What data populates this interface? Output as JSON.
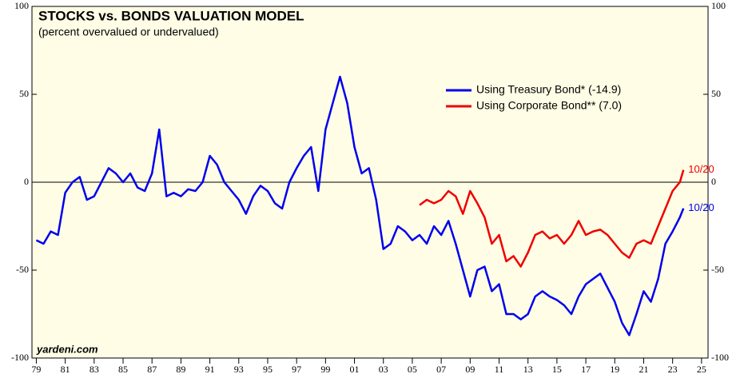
{
  "chart_data": {
    "type": "line",
    "title": "STOCKS vs. BONDS VALUATION MODEL",
    "subtitle": "(percent overvalued or undervalued)",
    "source": "yardeni.com",
    "legend": "upper right",
    "reference_line": 0,
    "x": [
      1979.0,
      1979.5,
      1980.0,
      1980.5,
      1981.0,
      1981.5,
      1982.0,
      1982.5,
      1983.0,
      1983.5,
      1984.0,
      1984.5,
      1985.0,
      1985.5,
      1986.0,
      1986.5,
      1987.0,
      1987.5,
      1988.0,
      1988.5,
      1989.0,
      1989.5,
      1990.0,
      1990.5,
      1991.0,
      1991.5,
      1992.0,
      1992.5,
      1993.0,
      1993.5,
      1994.0,
      1994.5,
      1995.0,
      1995.5,
      1996.0,
      1996.5,
      1997.0,
      1997.5,
      1998.0,
      1998.5,
      1999.0,
      1999.5,
      2000.0,
      2000.5,
      2001.0,
      2001.5,
      2002.0,
      2002.5,
      2003.0,
      2003.5,
      2004.0,
      2004.5,
      2005.0,
      2005.5,
      2006.0,
      2006.5,
      2007.0,
      2007.5,
      2008.0,
      2008.5,
      2009.0,
      2009.5,
      2010.0,
      2010.5,
      2011.0,
      2011.5,
      2012.0,
      2012.5,
      2013.0,
      2013.5,
      2014.0,
      2014.5,
      2015.0,
      2015.5,
      2016.0,
      2016.5,
      2017.0,
      2017.5,
      2018.0,
      2018.5,
      2019.0,
      2019.5,
      2020.0,
      2020.5,
      2021.0,
      2021.5,
      2022.0,
      2022.5,
      2023.0,
      2023.5,
      2023.75
    ],
    "series": [
      {
        "name": "Using Treasury Bond* (-14.9)",
        "color": "#0000ee",
        "end_label": "10/20",
        "values": [
          -33,
          -35,
          -28,
          -30,
          -6,
          0,
          3,
          -10,
          -8,
          0,
          8,
          5,
          0,
          5,
          -3,
          -5,
          5,
          30,
          -8,
          -6,
          -8,
          -4,
          -5,
          0,
          15,
          10,
          0,
          -5,
          -10,
          -18,
          -8,
          -2,
          -5,
          -12,
          -15,
          0,
          8,
          15,
          20,
          -5,
          30,
          45,
          60,
          45,
          20,
          5,
          8,
          -10,
          -38,
          -35,
          -25,
          -28,
          -33,
          -30,
          -35,
          -25,
          -30,
          -22,
          -35,
          -50,
          -65,
          -50,
          -48,
          -62,
          -58,
          -75,
          -75,
          -78,
          -75,
          -65,
          -62,
          -65,
          -67,
          -70,
          -75,
          -65,
          -58,
          -55,
          -52,
          -60,
          -68,
          -80,
          -87,
          -75,
          -62,
          -68,
          -55,
          -35,
          -28,
          -20,
          -14.9
        ]
      },
      {
        "name": "Using Corporate Bond** (7.0)",
        "color": "#ee0000",
        "end_label": "10/20",
        "values": [
          null,
          null,
          null,
          null,
          null,
          null,
          null,
          null,
          null,
          null,
          null,
          null,
          null,
          null,
          null,
          null,
          null,
          null,
          null,
          null,
          null,
          null,
          null,
          null,
          null,
          null,
          null,
          null,
          null,
          null,
          null,
          null,
          null,
          null,
          null,
          null,
          null,
          null,
          null,
          null,
          null,
          null,
          null,
          null,
          null,
          null,
          null,
          null,
          null,
          null,
          null,
          null,
          null,
          -13,
          -10,
          -12,
          -10,
          -5,
          -8,
          -18,
          -5,
          -12,
          -20,
          -35,
          -30,
          -45,
          -42,
          -48,
          -40,
          -30,
          -28,
          -32,
          -30,
          -35,
          -30,
          -22,
          -30,
          -28,
          -27,
          -30,
          -35,
          -40,
          -43,
          -35,
          -33,
          -35,
          -25,
          -15,
          -5,
          0,
          7.0
        ]
      }
    ],
    "xlim": [
      1978.7,
      2025.45
    ],
    "xticks": [
      {
        "value": 1979,
        "label": "79"
      },
      {
        "value": 1981,
        "label": "81"
      },
      {
        "value": 1983,
        "label": "83"
      },
      {
        "value": 1985,
        "label": "85"
      },
      {
        "value": 1987,
        "label": "87"
      },
      {
        "value": 1989,
        "label": "89"
      },
      {
        "value": 1991,
        "label": "91"
      },
      {
        "value": 1993,
        "label": "93"
      },
      {
        "value": 1995,
        "label": "95"
      },
      {
        "value": 1997,
        "label": "97"
      },
      {
        "value": 1999,
        "label": "99"
      },
      {
        "value": 2001,
        "label": "01"
      },
      {
        "value": 2003,
        "label": "03"
      },
      {
        "value": 2005,
        "label": "05"
      },
      {
        "value": 2007,
        "label": "07"
      },
      {
        "value": 2009,
        "label": "09"
      },
      {
        "value": 2011,
        "label": "11"
      },
      {
        "value": 2013,
        "label": "13"
      },
      {
        "value": 2015,
        "label": "15"
      },
      {
        "value": 2017,
        "label": "17"
      },
      {
        "value": 2019,
        "label": "19"
      },
      {
        "value": 2021,
        "label": "21"
      },
      {
        "value": 2023,
        "label": "23"
      },
      {
        "value": 2025,
        "label": "25"
      }
    ],
    "ylim": [
      -100,
      100
    ],
    "yticks": [
      -100,
      -50,
      0,
      50,
      100
    ],
    "y2lim": [
      -100,
      100
    ],
    "y2ticks": [
      -100,
      -50,
      0,
      50,
      100
    ]
  }
}
